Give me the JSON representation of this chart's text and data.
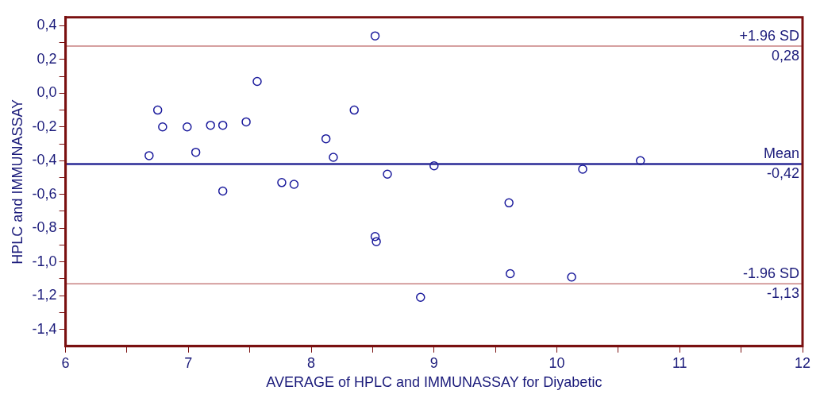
{
  "chart_data": {
    "type": "scatter",
    "xlabel": "AVERAGE of HPLC and IMMUNASSAY for Diyabetic",
    "ylabel": "HPLC and IMMUNASSAY",
    "x": [
      8.52,
      7.56,
      6.75,
      8.35,
      6.79,
      6.99,
      7.18,
      7.28,
      7.47,
      8.12,
      6.68,
      7.06,
      8.18,
      9.0,
      8.62,
      10.21,
      10.68,
      7.28,
      7.76,
      7.86,
      9.61,
      8.52,
      8.53,
      9.62,
      10.12,
      8.89
    ],
    "series": [
      {
        "color": "#1a1a9c",
        "values": [
          0.34,
          0.07,
          -0.1,
          -0.1,
          -0.2,
          -0.2,
          -0.19,
          -0.19,
          -0.17,
          -0.27,
          -0.37,
          -0.35,
          -0.38,
          -0.43,
          -0.48,
          -0.45,
          -0.4,
          -0.58,
          -0.53,
          -0.54,
          -0.65,
          -0.85,
          -0.88,
          -1.07,
          -1.09,
          -1.21
        ]
      }
    ],
    "marker": "circle",
    "grid": false,
    "legend": false,
    "xlim": [
      6,
      12
    ],
    "xticks": [
      6,
      {
        "value": 6.5,
        "label": null
      },
      7,
      {
        "value": 7.5,
        "label": null
      },
      8,
      {
        "value": 8.5,
        "label": null
      },
      9,
      {
        "value": 9.5,
        "label": null
      },
      10,
      {
        "value": 10.5,
        "label": null
      },
      11,
      {
        "value": 11.5,
        "label": null
      },
      12
    ],
    "ylim": [
      -1.5,
      0.45
    ],
    "yticks": [
      {
        "value": 0.4,
        "label": "0,4"
      },
      {
        "value": 0.3,
        "label": null
      },
      {
        "value": 0.2,
        "label": "0,2"
      },
      {
        "value": 0.1,
        "label": null
      },
      {
        "value": 0,
        "label": "0,0"
      },
      {
        "value": -0.1,
        "label": null
      },
      {
        "value": -0.2,
        "label": "-0,2"
      },
      {
        "value": -0.3,
        "label": null
      },
      {
        "value": -0.4,
        "label": "-0,4"
      },
      {
        "value": -0.5,
        "label": null
      },
      {
        "value": -0.6,
        "label": "-0,6"
      },
      {
        "value": -0.7,
        "label": null
      },
      {
        "value": -0.8,
        "label": "-0,8"
      },
      {
        "value": -0.9,
        "label": null
      },
      {
        "value": -1.0,
        "label": "-1,0"
      },
      {
        "value": -1.1,
        "label": null
      },
      {
        "value": -1.2,
        "label": "-1,2"
      },
      {
        "value": -1.3,
        "label": null
      },
      {
        "value": -1.4,
        "label": "-1,4"
      }
    ],
    "ref_lines": [
      {
        "axis": "y",
        "value": 0.28,
        "label": "+1.96 SD",
        "color": "#c88080"
      },
      {
        "axis": "y",
        "value": -0.42,
        "label": "Mean",
        "color": "#2a2a96"
      },
      {
        "axis": "y",
        "value": -1.13,
        "label": "-1.96 SD",
        "color": "#c88080"
      }
    ],
    "annotations": [
      {
        "text": "0,28",
        "y": 0.28
      },
      {
        "text": "-0,42",
        "y": -0.42
      },
      {
        "text": "-1,13",
        "y": -1.13
      }
    ]
  }
}
